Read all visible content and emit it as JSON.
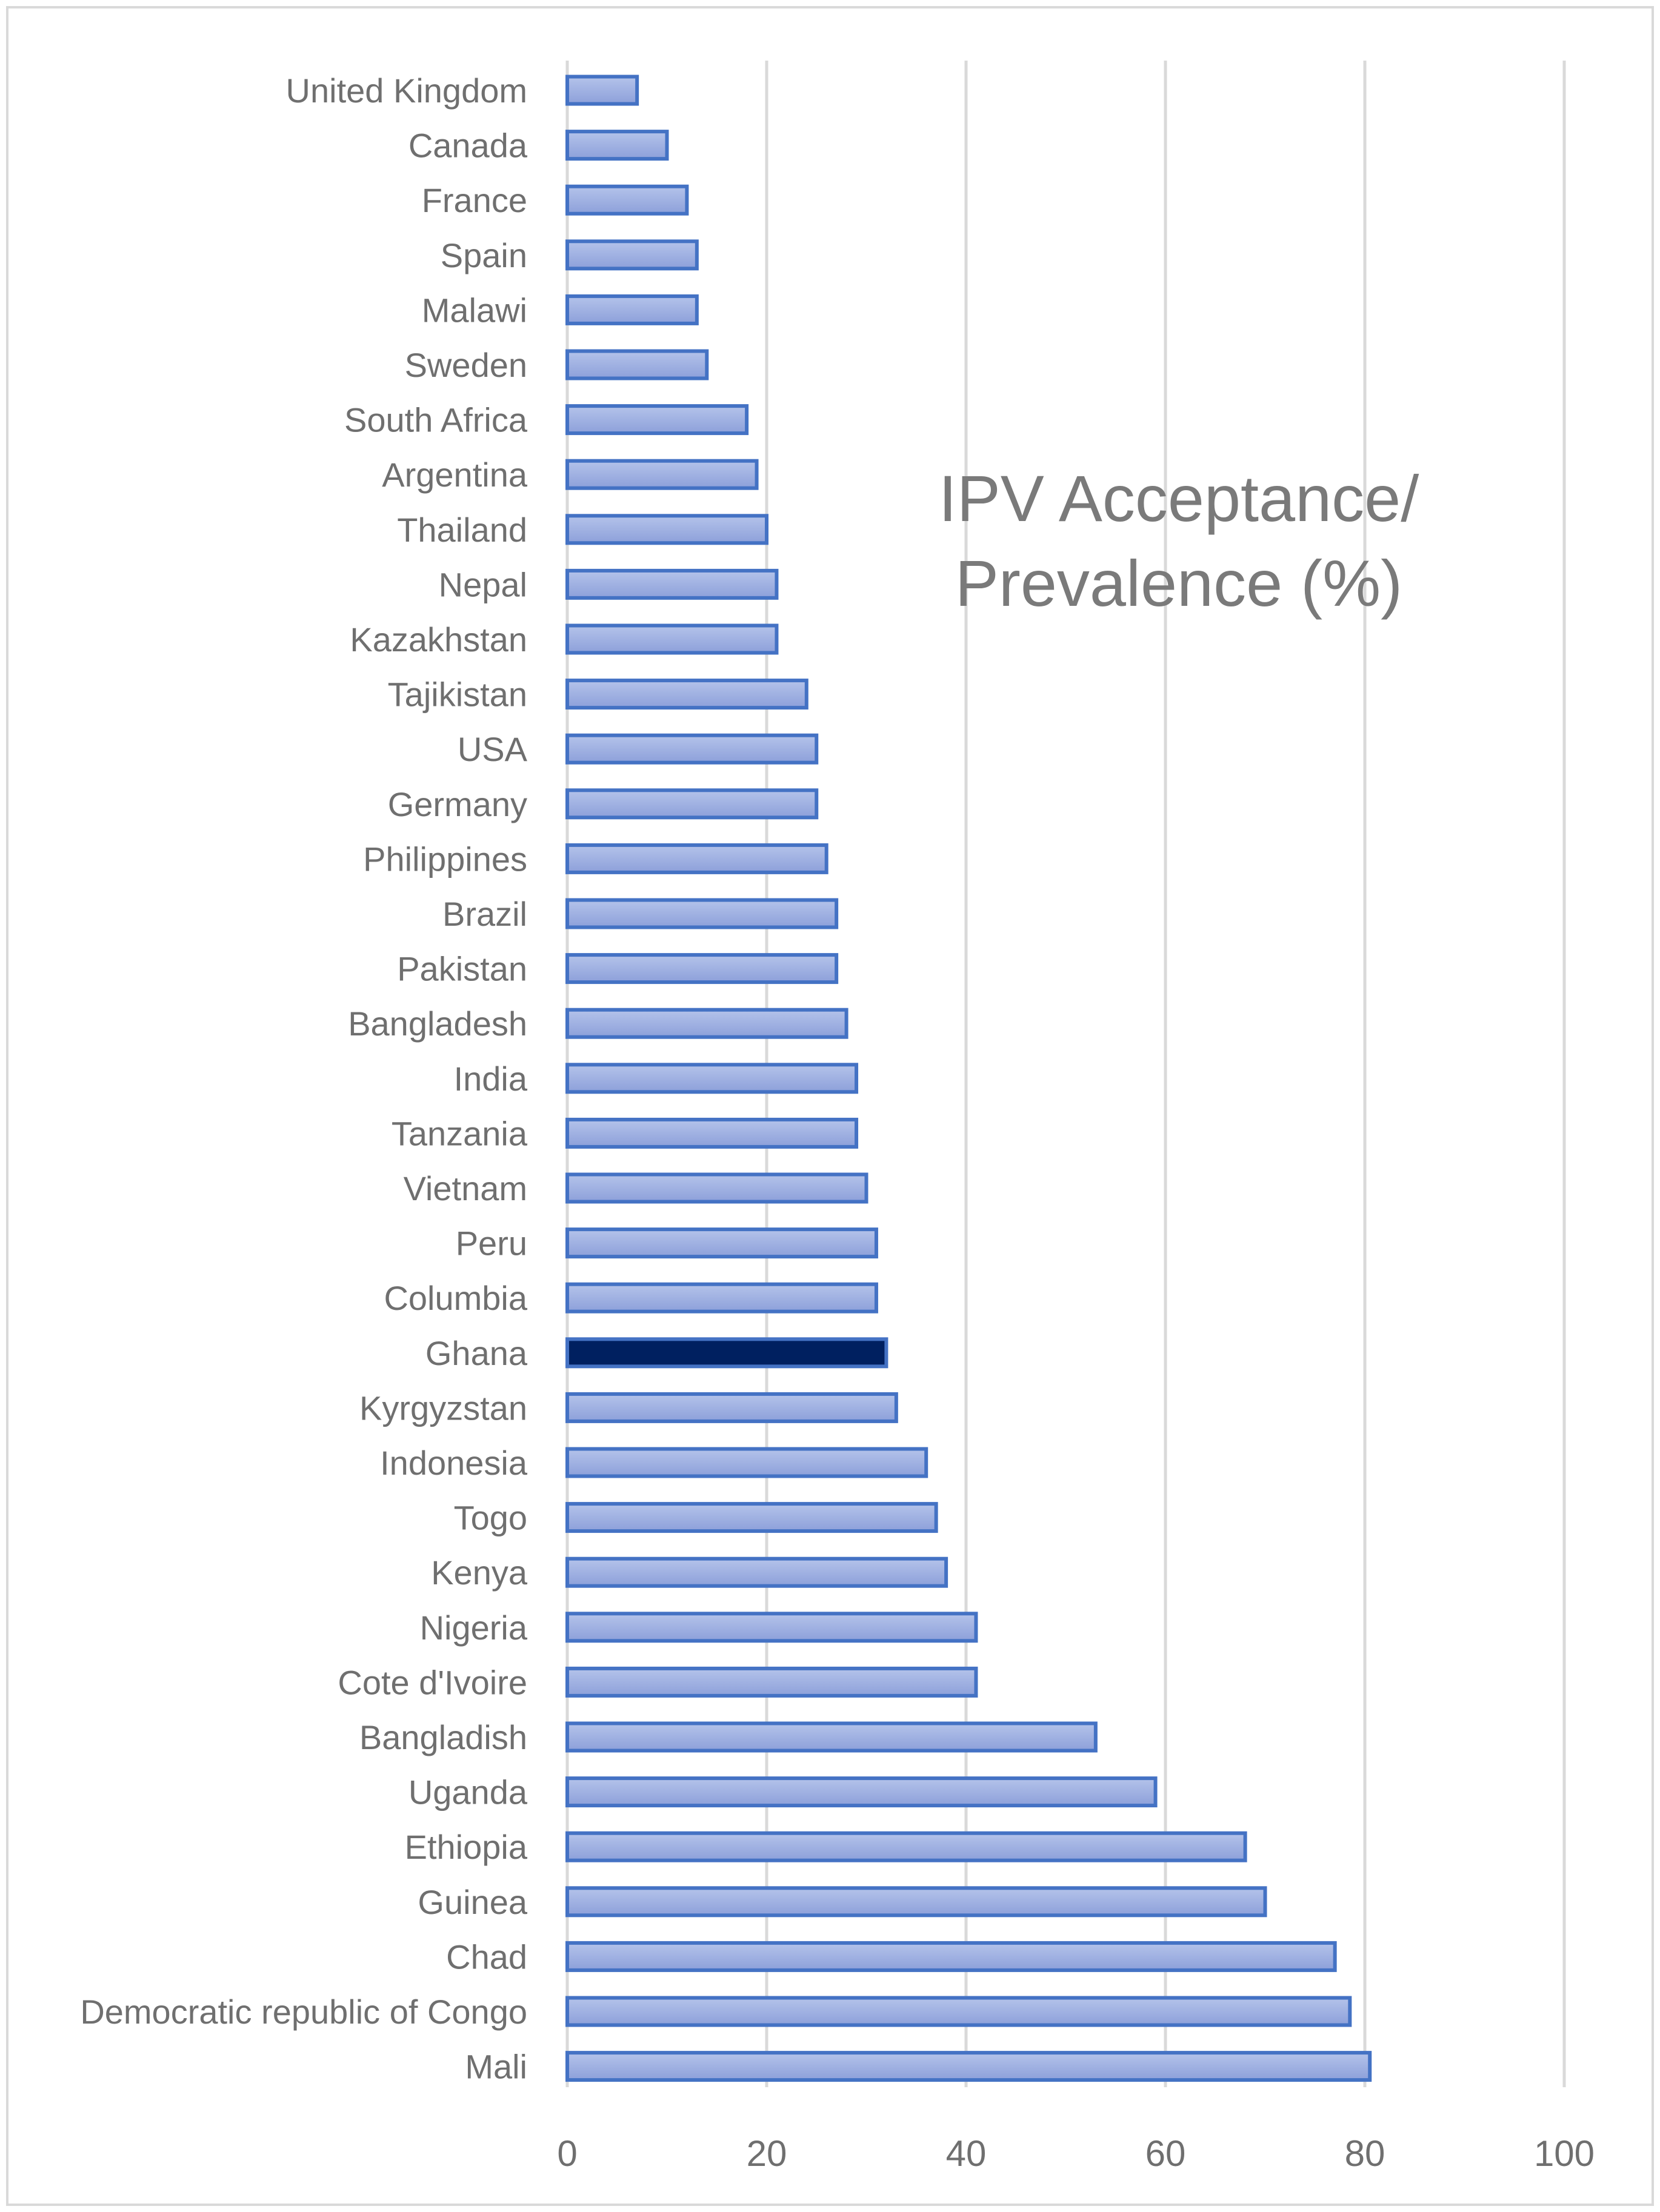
{
  "chart_data": {
    "type": "bar",
    "orientation": "horizontal",
    "title_lines": [
      "IPV Acceptance/",
      "Prevalence (%)"
    ],
    "xlim": [
      0,
      100
    ],
    "xticks": [
      0,
      20,
      40,
      60,
      80,
      100
    ],
    "grid": true,
    "categories": [
      "United Kingdom",
      "Canada",
      "France",
      "Spain",
      "Malawi",
      "Sweden",
      "South Africa",
      "Argentina",
      "Thailand",
      "Nepal",
      "Kazakhstan",
      "Tajikistan",
      "USA",
      "Germany",
      "Philippines",
      "Brazil",
      "Pakistan",
      "Bangladesh",
      "India",
      "Tanzania",
      "Vietnam",
      "Peru",
      "Columbia",
      "Ghana",
      "Kyrgyzstan",
      "Indonesia",
      "Togo",
      "Kenya",
      "Nigeria",
      "Cote d'Ivoire",
      "Bangladish",
      "Uganda",
      "Ethiopia",
      "Guinea",
      "Chad",
      "Democratic republic of Congo",
      "Mali"
    ],
    "values": [
      7,
      10,
      12,
      13,
      13,
      14,
      18,
      19,
      20,
      21,
      21,
      24,
      25,
      25,
      26,
      27,
      27,
      28,
      29,
      29,
      30,
      31,
      31,
      32,
      33,
      36,
      37,
      38,
      41,
      41,
      53,
      59,
      68,
      70,
      77,
      78.5,
      80.5
    ],
    "highlight_category": "Ghana",
    "colors": {
      "bar_fill_top": "#b4c3ea",
      "bar_fill_bottom": "#8da0da",
      "bar_stroke": "#4472c4",
      "highlight_fill": "#002060",
      "highlight_stroke": "#4472c4",
      "grid": "#d9d9d9",
      "text": "#6f6f6f"
    }
  }
}
